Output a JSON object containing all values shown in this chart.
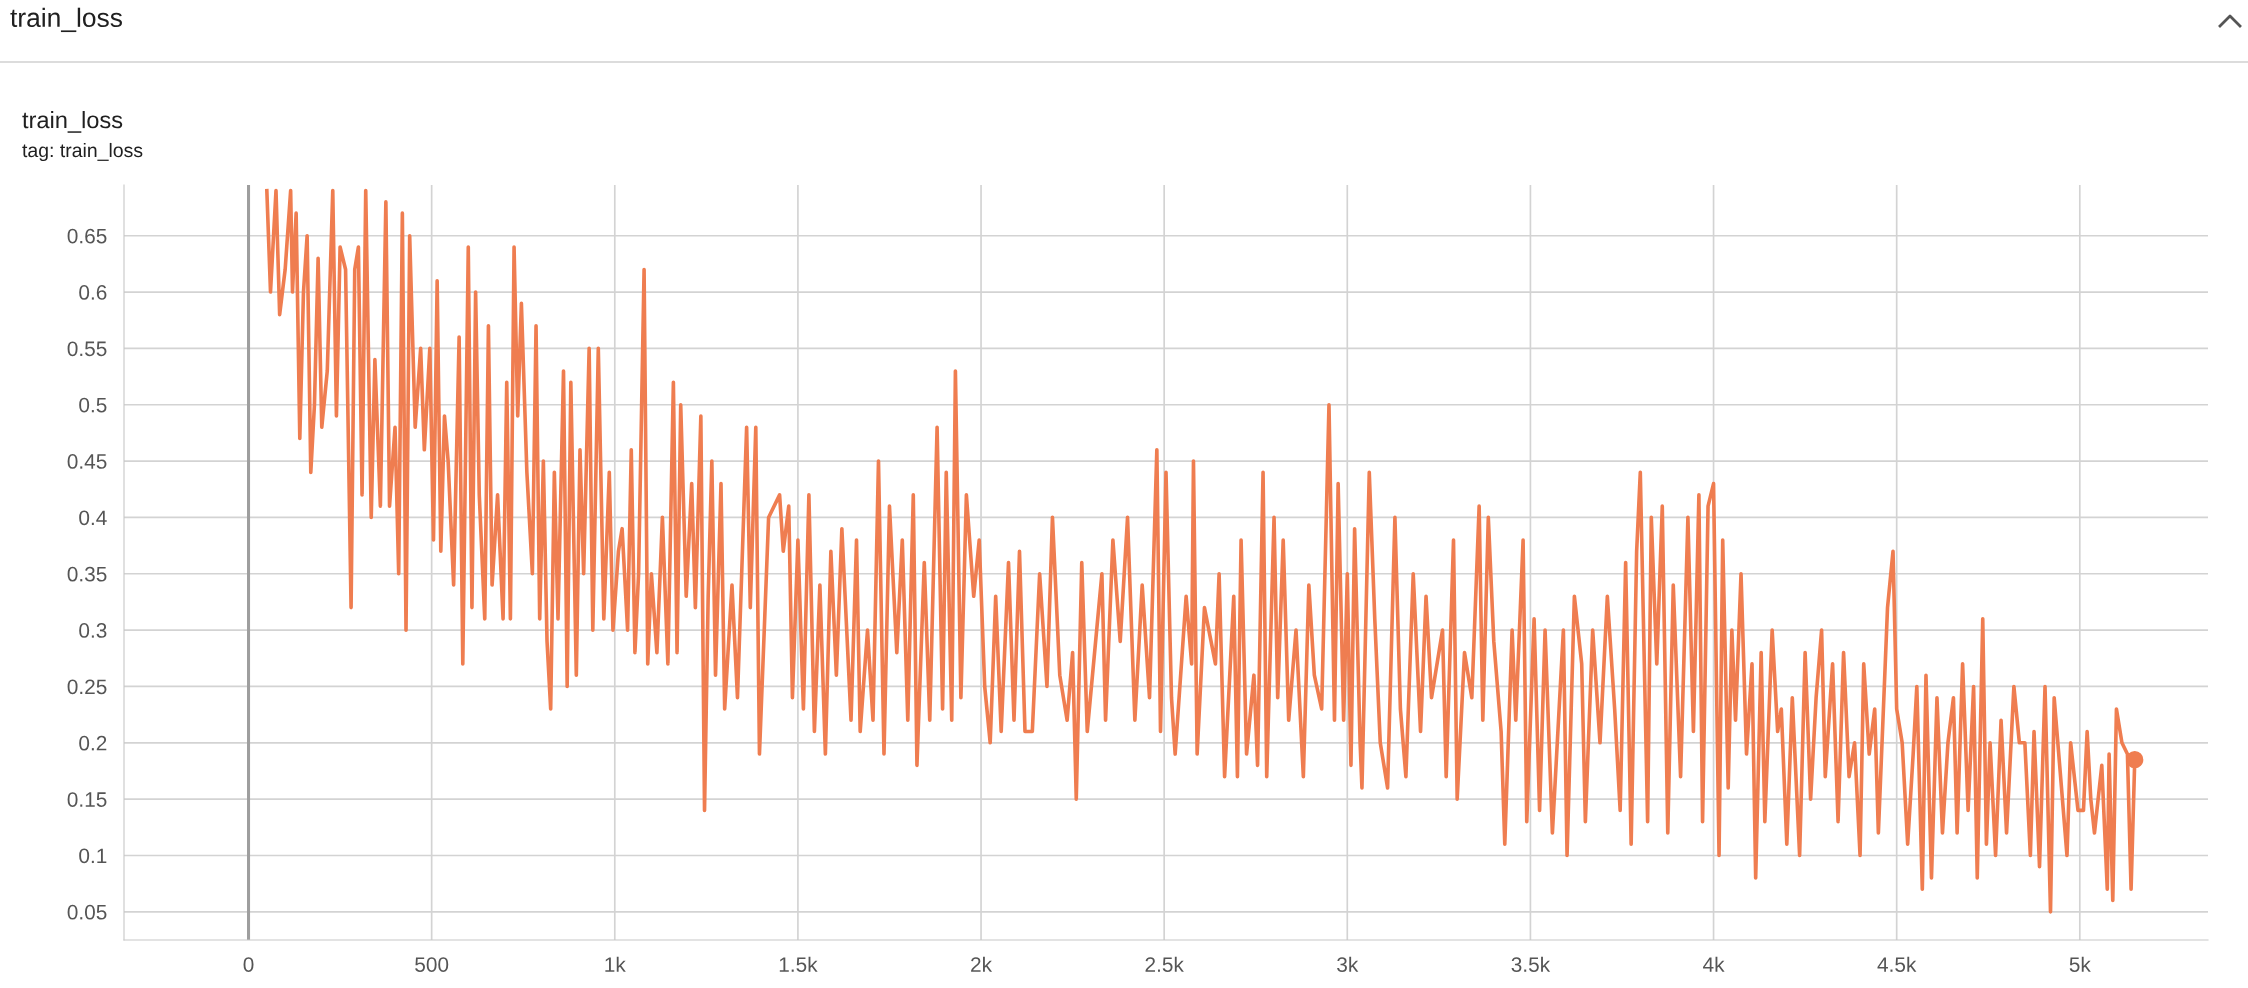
{
  "chart_data": {
    "type": "line",
    "title": "train_loss",
    "subtitle": "tag: train_loss",
    "annotations": [
      "train_loss"
    ],
    "xlim": [
      -340,
      5350
    ],
    "xticks": [
      0,
      500,
      {
        "value": 1000,
        "label": "1k"
      },
      {
        "value": 1500,
        "label": "1.5k"
      },
      {
        "value": 2000,
        "label": "2k"
      },
      {
        "value": 2500,
        "label": "2.5k"
      },
      {
        "value": 3000,
        "label": "3k"
      },
      {
        "value": 3500,
        "label": "3.5k"
      },
      {
        "value": 4000,
        "label": "4k"
      },
      {
        "value": 4500,
        "label": "4.5k"
      },
      {
        "value": 5000,
        "label": "5k"
      }
    ],
    "ylim": [
      0.025,
      0.695
    ],
    "yticks": [
      0.05,
      0.1,
      0.15,
      0.2,
      0.25,
      0.3,
      0.35,
      0.4,
      0.45,
      0.5,
      0.55,
      0.6,
      0.65
    ],
    "grid": true,
    "legend": false,
    "marker": "none",
    "line_style": "solid",
    "ref_lines": [
      {
        "axis": "x",
        "value": 0,
        "color": "#9e9e9e"
      }
    ],
    "series": [
      {
        "color": "#ef7d50",
        "x": [
          50,
          60,
          75,
          85,
          100,
          115,
          120,
          130,
          140,
          150,
          160,
          170,
          180,
          190,
          200,
          215,
          230,
          240,
          250,
          265,
          280,
          290,
          300,
          310,
          320,
          335,
          345,
          360,
          375,
          385,
          400,
          410,
          420,
          430,
          440,
          455,
          470,
          480,
          495,
          505,
          515,
          525,
          535,
          545,
          560,
          575,
          585,
          600,
          610,
          620,
          630,
          645,
          655,
          665,
          680,
          695,
          705,
          715,
          725,
          735,
          745,
          760,
          775,
          785,
          795,
          805,
          815,
          825,
          835,
          845,
          860,
          870,
          880,
          895,
          905,
          915,
          930,
          940,
          955,
          970,
          985,
          995,
          1010,
          1020,
          1035,
          1045,
          1055,
          1065,
          1080,
          1090,
          1100,
          1115,
          1130,
          1145,
          1160,
          1170,
          1180,
          1195,
          1210,
          1220,
          1235,
          1245,
          1255,
          1265,
          1275,
          1290,
          1300,
          1320,
          1335,
          1360,
          1370,
          1385,
          1395,
          1420,
          1450,
          1460,
          1475,
          1485,
          1500,
          1515,
          1530,
          1545,
          1560,
          1575,
          1590,
          1605,
          1620,
          1645,
          1660,
          1670,
          1690,
          1705,
          1720,
          1735,
          1750,
          1770,
          1785,
          1800,
          1815,
          1825,
          1845,
          1860,
          1880,
          1895,
          1905,
          1920,
          1930,
          1945,
          1960,
          1980,
          1995,
          2010,
          2025,
          2040,
          2055,
          2075,
          2090,
          2105,
          2120,
          2140,
          2160,
          2180,
          2195,
          2215,
          2235,
          2250,
          2260,
          2275,
          2290,
          2330,
          2340,
          2360,
          2380,
          2400,
          2420,
          2440,
          2460,
          2480,
          2490,
          2505,
          2520,
          2530,
          2560,
          2575,
          2580,
          2590,
          2610,
          2640,
          2650,
          2665,
          2690,
          2700,
          2710,
          2725,
          2745,
          2755,
          2770,
          2780,
          2800,
          2810,
          2825,
          2840,
          2860,
          2880,
          2895,
          2910,
          2930,
          2950,
          2965,
          2975,
          2990,
          3000,
          3010,
          3020,
          3035,
          3040,
          3060,
          3075,
          3090,
          3110,
          3130,
          3145,
          3160,
          3180,
          3200,
          3215,
          3230,
          3260,
          3270,
          3290,
          3300,
          3320,
          3340,
          3360,
          3370,
          3385,
          3400,
          3420,
          3430,
          3450,
          3460,
          3480,
          3490,
          3510,
          3525,
          3540,
          3560,
          3590,
          3600,
          3620,
          3640,
          3650,
          3670,
          3690,
          3710,
          3730,
          3745,
          3760,
          3775,
          3790,
          3800,
          3820,
          3830,
          3845,
          3860,
          3875,
          3890,
          3910,
          3930,
          3945,
          3960,
          3970,
          3985,
          4000,
          4015,
          4025,
          4040,
          4050,
          4060,
          4075,
          4090,
          4105,
          4115,
          4130,
          4140,
          4160,
          4175,
          4185,
          4200,
          4215,
          4235,
          4250,
          4265,
          4280,
          4295,
          4305,
          4325,
          4340,
          4355,
          4370,
          4385,
          4400,
          4410,
          4425,
          4440,
          4450,
          4475,
          4490,
          4500,
          4515,
          4530,
          4545,
          4555,
          4570,
          4580,
          4595,
          4610,
          4625,
          4640,
          4655,
          4665,
          4680,
          4695,
          4710,
          4720,
          4735,
          4745,
          4755,
          4770,
          4785,
          4800,
          4820,
          4835,
          4850,
          4865,
          4875,
          4890,
          4905,
          4920,
          4930,
          4950,
          4965,
          4975,
          4995,
          5010,
          5020,
          5030,
          5040,
          5060,
          5075,
          5080,
          5090,
          5100,
          5115,
          5130,
          5140,
          5150
        ],
        "values": [
          0.69,
          0.6,
          0.69,
          0.58,
          0.62,
          0.69,
          0.6,
          0.67,
          0.47,
          0.6,
          0.65,
          0.44,
          0.5,
          0.63,
          0.48,
          0.53,
          0.69,
          0.49,
          0.64,
          0.62,
          0.32,
          0.62,
          0.64,
          0.42,
          0.69,
          0.4,
          0.54,
          0.41,
          0.68,
          0.41,
          0.48,
          0.35,
          0.67,
          0.3,
          0.65,
          0.48,
          0.55,
          0.46,
          0.55,
          0.38,
          0.61,
          0.37,
          0.49,
          0.45,
          0.34,
          0.56,
          0.27,
          0.64,
          0.32,
          0.6,
          0.42,
          0.31,
          0.57,
          0.34,
          0.42,
          0.31,
          0.52,
          0.31,
          0.64,
          0.49,
          0.59,
          0.44,
          0.35,
          0.57,
          0.31,
          0.45,
          0.29,
          0.23,
          0.44,
          0.31,
          0.53,
          0.25,
          0.52,
          0.26,
          0.46,
          0.35,
          0.55,
          0.3,
          0.55,
          0.31,
          0.44,
          0.3,
          0.37,
          0.39,
          0.3,
          0.46,
          0.28,
          0.35,
          0.62,
          0.27,
          0.35,
          0.28,
          0.4,
          0.27,
          0.52,
          0.28,
          0.5,
          0.33,
          0.43,
          0.32,
          0.49,
          0.14,
          0.33,
          0.45,
          0.26,
          0.43,
          0.23,
          0.34,
          0.24,
          0.48,
          0.32,
          0.48,
          0.19,
          0.4,
          0.42,
          0.37,
          0.41,
          0.24,
          0.38,
          0.23,
          0.42,
          0.21,
          0.34,
          0.19,
          0.37,
          0.26,
          0.39,
          0.22,
          0.38,
          0.21,
          0.3,
          0.22,
          0.45,
          0.19,
          0.41,
          0.28,
          0.38,
          0.22,
          0.42,
          0.18,
          0.36,
          0.22,
          0.48,
          0.23,
          0.44,
          0.22,
          0.53,
          0.24,
          0.42,
          0.33,
          0.38,
          0.25,
          0.2,
          0.33,
          0.21,
          0.36,
          0.22,
          0.37,
          0.21,
          0.21,
          0.35,
          0.25,
          0.4,
          0.26,
          0.22,
          0.28,
          0.15,
          0.36,
          0.21,
          0.35,
          0.22,
          0.38,
          0.29,
          0.4,
          0.22,
          0.34,
          0.24,
          0.46,
          0.21,
          0.44,
          0.24,
          0.19,
          0.33,
          0.27,
          0.45,
          0.19,
          0.32,
          0.27,
          0.35,
          0.17,
          0.33,
          0.17,
          0.38,
          0.19,
          0.26,
          0.18,
          0.44,
          0.17,
          0.4,
          0.24,
          0.38,
          0.22,
          0.3,
          0.17,
          0.34,
          0.26,
          0.23,
          0.5,
          0.22,
          0.43,
          0.22,
          0.35,
          0.18,
          0.39,
          0.2,
          0.16,
          0.44,
          0.31,
          0.2,
          0.16,
          0.4,
          0.23,
          0.17,
          0.35,
          0.21,
          0.33,
          0.24,
          0.3,
          0.17,
          0.38,
          0.15,
          0.28,
          0.24,
          0.41,
          0.22,
          0.4,
          0.29,
          0.21,
          0.11,
          0.3,
          0.22,
          0.38,
          0.13,
          0.31,
          0.14,
          0.3,
          0.12,
          0.3,
          0.1,
          0.33,
          0.27,
          0.13,
          0.3,
          0.2,
          0.33,
          0.23,
          0.14,
          0.36,
          0.11,
          0.37,
          0.44,
          0.13,
          0.4,
          0.27,
          0.41,
          0.12,
          0.34,
          0.17,
          0.4,
          0.21,
          0.42,
          0.13,
          0.41,
          0.43,
          0.1,
          0.38,
          0.16,
          0.3,
          0.22,
          0.35,
          0.19,
          0.27,
          0.08,
          0.28,
          0.13,
          0.3,
          0.21,
          0.23,
          0.11,
          0.24,
          0.1,
          0.28,
          0.15,
          0.24,
          0.3,
          0.17,
          0.27,
          0.13,
          0.28,
          0.17,
          0.2,
          0.1,
          0.27,
          0.19,
          0.23,
          0.12,
          0.32,
          0.37,
          0.23,
          0.2,
          0.11,
          0.19,
          0.25,
          0.07,
          0.26,
          0.08,
          0.24,
          0.12,
          0.2,
          0.24,
          0.12,
          0.27,
          0.14,
          0.25,
          0.08,
          0.31,
          0.11,
          0.2,
          0.1,
          0.22,
          0.12,
          0.25,
          0.2,
          0.2,
          0.1,
          0.21,
          0.09,
          0.25,
          0.05,
          0.24,
          0.16,
          0.1,
          0.2,
          0.14,
          0.14,
          0.21,
          0.15,
          0.12,
          0.18,
          0.07,
          0.19,
          0.06,
          0.23,
          0.2,
          0.19,
          0.07,
          0.185
        ]
      },
      {
        "type": "scatter",
        "color": "#ef7d50",
        "marker": "circle",
        "x": [
          5150
        ],
        "values": [
          0.185
        ]
      }
    ]
  }
}
